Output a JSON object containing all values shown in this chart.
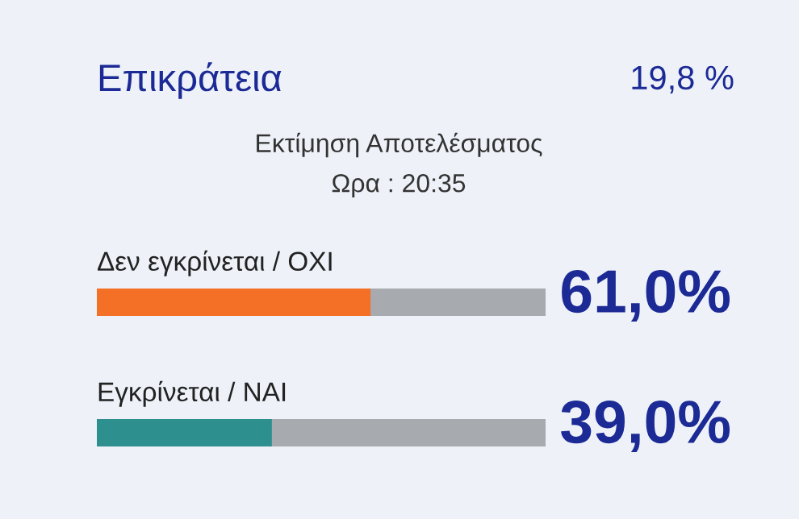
{
  "chart_data": {
    "type": "bar",
    "orientation": "horizontal",
    "title": "Επικράτεια",
    "subtitle": "Εκτίμηση Αποτελέσματος",
    "annotations": [
      "19,8 %",
      "Ωρα : 20:35"
    ],
    "categories": [
      "Δεν εγκρίνεται / ΟΧΙ",
      "Εγκρίνεται / ΝΑΙ"
    ],
    "values": [
      61.0,
      39.0
    ],
    "colors": [
      "#f47026",
      "#2e8f8f"
    ],
    "value_labels": [
      "61,0%",
      "39,0%"
    ],
    "xlim": [
      0,
      100
    ],
    "tick_labels": false
  }
}
